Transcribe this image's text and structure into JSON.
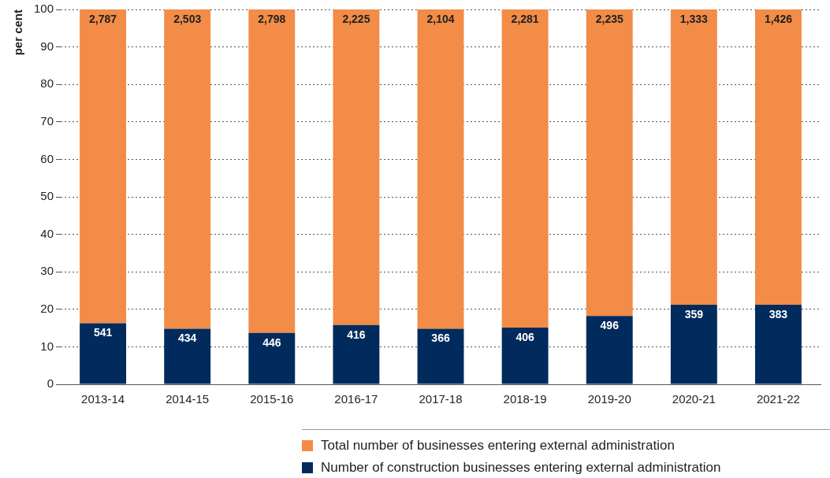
{
  "chart_data": {
    "type": "bar",
    "stacked": true,
    "ylabel": "per cent",
    "categories": [
      "2013-14",
      "2014-15",
      "2015-16",
      "2016-17",
      "2017-18",
      "2018-19",
      "2019-20",
      "2020-21",
      "2021-22"
    ],
    "series": [
      {
        "name": "Number of construction businesses entering external administration",
        "color": "#002b5c",
        "values": [
          16.3,
          14.8,
          13.7,
          15.8,
          14.8,
          15.1,
          18.2,
          21.2,
          21.2
        ]
      },
      {
        "name": "Total number of businesses entering external administration",
        "color": "#f28c47",
        "values": [
          83.7,
          85.2,
          86.3,
          84.2,
          85.2,
          84.9,
          81.8,
          78.8,
          78.8
        ]
      }
    ],
    "annotations": [
      {
        "text": "541",
        "x": "2013-14",
        "y": 16.3
      },
      {
        "text": "434",
        "x": "2014-15",
        "y": 14.8
      },
      {
        "text": "446",
        "x": "2015-16",
        "y": 13.7
      },
      {
        "text": "416",
        "x": "2016-17",
        "y": 15.8
      },
      {
        "text": "366",
        "x": "2017-18",
        "y": 14.8
      },
      {
        "text": "406",
        "x": "2018-19",
        "y": 15.1
      },
      {
        "text": "496",
        "x": "2019-20",
        "y": 18.2
      },
      {
        "text": "359",
        "x": "2020-21",
        "y": 21.2
      },
      {
        "text": "383",
        "x": "2021-22",
        "y": 21.2
      },
      {
        "text": "2,787",
        "x": "2013-14",
        "y": 100
      },
      {
        "text": "2,503",
        "x": "2014-15",
        "y": 100
      },
      {
        "text": "2,798",
        "x": "2015-16",
        "y": 100
      },
      {
        "text": "2,225",
        "x": "2016-17",
        "y": 100
      },
      {
        "text": "2,104",
        "x": "2017-18",
        "y": 100
      },
      {
        "text": "2,281",
        "x": "2018-19",
        "y": 100
      },
      {
        "text": "2,235",
        "x": "2019-20",
        "y": 100
      },
      {
        "text": "1,333",
        "x": "2020-21",
        "y": 100
      },
      {
        "text": "1,426",
        "x": "2021-22",
        "y": 100
      }
    ],
    "ylim": [
      0,
      100
    ],
    "yticks": [
      0,
      10,
      20,
      30,
      40,
      50,
      60,
      70,
      80,
      90,
      100
    ],
    "grid": "y",
    "legend": "bottom right"
  }
}
